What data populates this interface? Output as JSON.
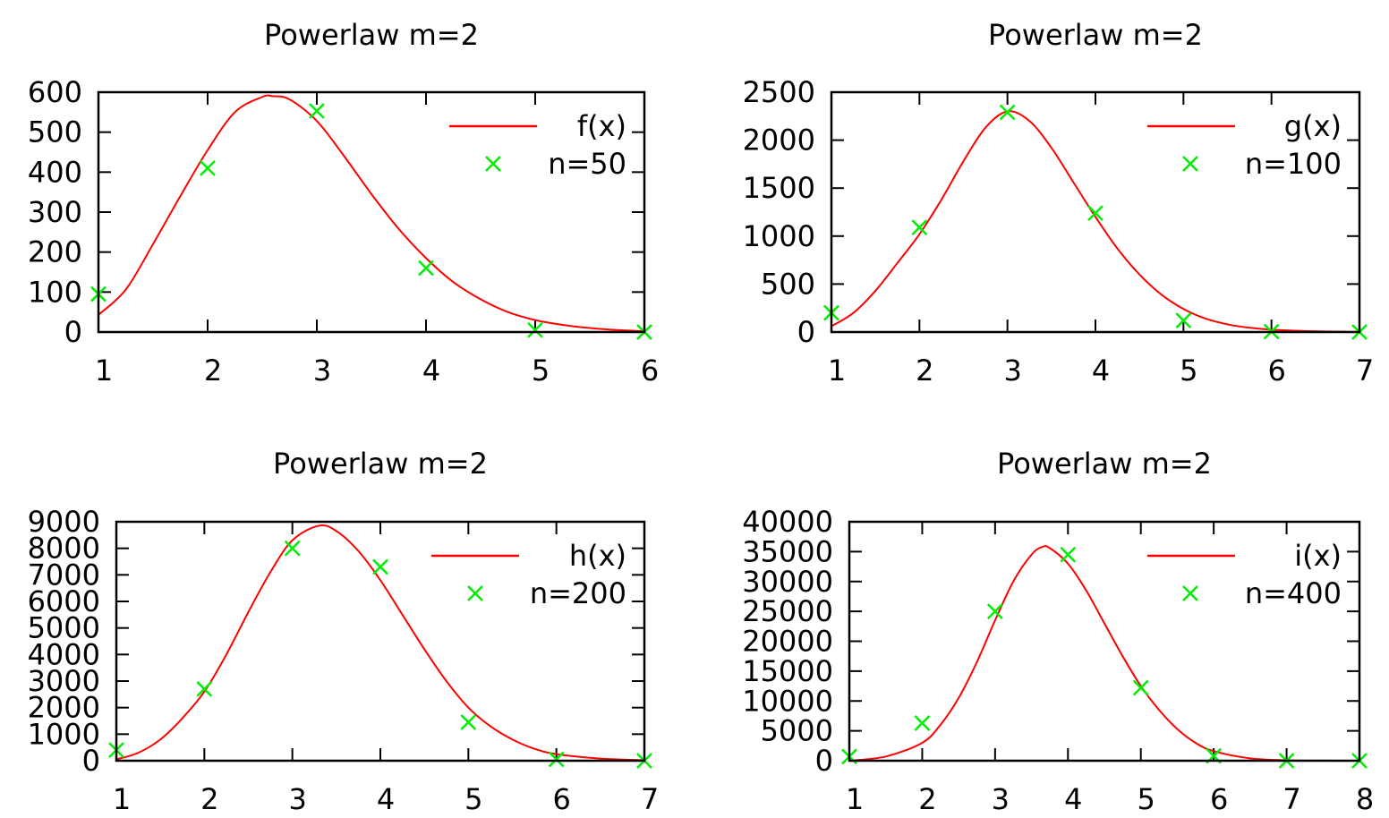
{
  "chart_data": [
    {
      "type": "line",
      "title": "Powerlaw m=2",
      "xlabel": "",
      "ylabel": "",
      "xlim": [
        1,
        6
      ],
      "ylim": [
        0,
        600
      ],
      "xticks": [
        1,
        2,
        3,
        4,
        5,
        6
      ],
      "yticks": [
        0,
        100,
        200,
        300,
        400,
        500,
        600
      ],
      "xtick_labels": [
        "1",
        "2",
        "3",
        "4",
        "5",
        "6"
      ],
      "ytick_labels": [
        "0",
        "100",
        "200",
        "300",
        "400",
        "500",
        "600"
      ],
      "grid": false,
      "legend_position": "top-right",
      "series": [
        {
          "name": "f(x)",
          "kind": "line",
          "color": "#ff0000",
          "x": [
            1.0,
            1.25,
            1.5,
            1.75,
            2.0,
            2.25,
            2.5,
            2.6,
            2.75,
            3.0,
            3.25,
            3.5,
            3.75,
            4.0,
            4.25,
            4.5,
            4.75,
            5.0,
            5.25,
            5.5,
            5.75,
            6.0
          ],
          "values": [
            43,
            106,
            220,
            340,
            455,
            550,
            588,
            590,
            582,
            528,
            440,
            345,
            258,
            185,
            125,
            82,
            50,
            30,
            18,
            10,
            5,
            2
          ]
        },
        {
          "name": "n=50",
          "kind": "scatter",
          "color": "#00ee00",
          "x": [
            1,
            2,
            3,
            4,
            5,
            6
          ],
          "values": [
            95,
            410,
            553,
            160,
            5,
            0
          ]
        }
      ]
    },
    {
      "type": "line",
      "title": "Powerlaw m=2",
      "xlabel": "",
      "ylabel": "",
      "xlim": [
        1,
        7
      ],
      "ylim": [
        0,
        2500
      ],
      "xticks": [
        1,
        2,
        3,
        4,
        5,
        6,
        7
      ],
      "yticks": [
        0,
        500,
        1000,
        1500,
        2000,
        2500
      ],
      "xtick_labels": [
        "1",
        "2",
        "3",
        "4",
        "5",
        "6",
        "7"
      ],
      "ytick_labels": [
        "0",
        "500",
        "1000",
        "1500",
        "2000",
        "2500"
      ],
      "grid": false,
      "legend_position": "top-right",
      "series": [
        {
          "name": "g(x)",
          "kind": "line",
          "color": "#ff0000",
          "x": [
            1.0,
            1.25,
            1.5,
            1.75,
            2.0,
            2.25,
            2.5,
            2.75,
            3.0,
            3.25,
            3.5,
            3.75,
            4.0,
            4.25,
            4.5,
            4.75,
            5.0,
            5.25,
            5.5,
            5.75,
            6.0,
            6.5,
            7.0
          ],
          "values": [
            60,
            200,
            430,
            720,
            1020,
            1380,
            1780,
            2130,
            2300,
            2200,
            1920,
            1560,
            1200,
            870,
            600,
            390,
            240,
            140,
            80,
            45,
            25,
            8,
            2
          ]
        },
        {
          "name": "n=100",
          "kind": "scatter",
          "color": "#00ee00",
          "x": [
            1,
            2,
            3,
            4,
            5,
            6,
            7
          ],
          "values": [
            200,
            1090,
            2290,
            1240,
            120,
            5,
            0
          ]
        }
      ]
    },
    {
      "type": "line",
      "title": "Powerlaw m=2",
      "xlabel": "",
      "ylabel": "",
      "xlim": [
        1,
        7
      ],
      "ylim": [
        0,
        9000
      ],
      "xticks": [
        1,
        2,
        3,
        4,
        5,
        6,
        7
      ],
      "yticks": [
        0,
        1000,
        2000,
        3000,
        4000,
        5000,
        6000,
        7000,
        8000,
        9000
      ],
      "xtick_labels": [
        "1",
        "2",
        "3",
        "4",
        "5",
        "6",
        "7"
      ],
      "ytick_labels": [
        "0",
        "1000",
        "2000",
        "3000",
        "4000",
        "5000",
        "6000",
        "7000",
        "8000",
        "9000"
      ],
      "grid": false,
      "legend_position": "top-right",
      "series": [
        {
          "name": "h(x)",
          "kind": "line",
          "color": "#ff0000",
          "x": [
            1.0,
            1.25,
            1.5,
            1.75,
            2.0,
            2.25,
            2.5,
            2.75,
            3.0,
            3.3,
            3.5,
            3.75,
            4.0,
            4.25,
            4.5,
            4.75,
            5.0,
            5.25,
            5.5,
            5.75,
            6.0,
            6.5,
            7.0
          ],
          "values": [
            50,
            300,
            800,
            1600,
            2600,
            4000,
            5600,
            7100,
            8300,
            8850,
            8650,
            7900,
            6800,
            5500,
            4200,
            3000,
            2000,
            1300,
            800,
            450,
            250,
            80,
            20
          ]
        },
        {
          "name": "n=200",
          "kind": "scatter",
          "color": "#00ee00",
          "x": [
            1,
            2,
            3,
            4,
            5,
            6,
            7
          ],
          "values": [
            400,
            2700,
            8000,
            7300,
            1450,
            50,
            0
          ]
        }
      ]
    },
    {
      "type": "line",
      "title": "Powerlaw m=2",
      "xlabel": "",
      "ylabel": "",
      "xlim": [
        1,
        8
      ],
      "ylim": [
        0,
        40000
      ],
      "xticks": [
        1,
        2,
        3,
        4,
        5,
        6,
        7,
        8
      ],
      "yticks": [
        0,
        5000,
        10000,
        15000,
        20000,
        25000,
        30000,
        35000,
        40000
      ],
      "xtick_labels": [
        "1",
        "2",
        "3",
        "4",
        "5",
        "6",
        "7",
        "8"
      ],
      "ytick_labels": [
        "0",
        "5000",
        "10000",
        "15000",
        "20000",
        "25000",
        "30000",
        "35000",
        "40000"
      ],
      "grid": false,
      "legend_position": "top-right",
      "series": [
        {
          "name": "i(x)",
          "kind": "line",
          "color": "#ff0000",
          "x": [
            1.0,
            1.5,
            2.0,
            2.25,
            2.5,
            2.75,
            3.0,
            3.25,
            3.5,
            3.65,
            3.75,
            4.0,
            4.25,
            4.5,
            4.75,
            5.0,
            5.25,
            5.5,
            5.75,
            6.0,
            6.5,
            7.0,
            7.5,
            8.0
          ],
          "values": [
            0,
            700,
            3000,
            6000,
            10500,
            16500,
            23500,
            30000,
            34500,
            35800,
            35600,
            33000,
            28500,
            23000,
            17500,
            12500,
            8500,
            5300,
            3000,
            1600,
            400,
            80,
            10,
            0
          ]
        },
        {
          "name": "n=400",
          "kind": "scatter",
          "color": "#00ee00",
          "x": [
            1,
            2,
            3,
            4,
            5,
            6,
            7,
            8
          ],
          "values": [
            700,
            6300,
            25000,
            34500,
            12200,
            800,
            0,
            0
          ]
        }
      ]
    }
  ]
}
